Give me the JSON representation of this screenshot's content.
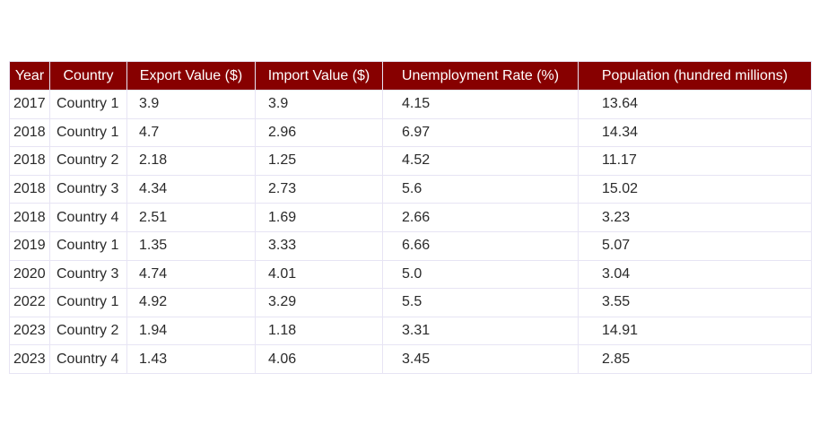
{
  "colors": {
    "header_bg": "#870000",
    "header_text": "#ffffff",
    "grid": "#e7e4f4",
    "cell_text": "#2a2a2a"
  },
  "chart_data": {
    "type": "table",
    "columns": [
      "Year",
      "Country",
      "Export Value ($)",
      "Import Value ($)",
      "Unemployment Rate (%)",
      "Population (hundred millions)"
    ],
    "rows": [
      [
        "2017",
        "Country 1",
        "3.9",
        "3.9",
        "4.15",
        "13.64"
      ],
      [
        "2018",
        "Country 1",
        "4.7",
        "2.96",
        "6.97",
        "14.34"
      ],
      [
        "2018",
        "Country 2",
        "2.18",
        "1.25",
        "4.52",
        "11.17"
      ],
      [
        "2018",
        "Country 3",
        "4.34",
        "2.73",
        "5.6",
        "15.02"
      ],
      [
        "2018",
        "Country 4",
        "2.51",
        "1.69",
        "2.66",
        "3.23"
      ],
      [
        "2019",
        "Country 1",
        "1.35",
        "3.33",
        "6.66",
        "5.07"
      ],
      [
        "2020",
        "Country 3",
        "4.74",
        "4.01",
        "5.0",
        "3.04"
      ],
      [
        "2022",
        "Country 1",
        "4.92",
        "3.29",
        "5.5",
        "3.55"
      ],
      [
        "2023",
        "Country 2",
        "1.94",
        "1.18",
        "3.31",
        "14.91"
      ],
      [
        "2023",
        "Country 4",
        "1.43",
        "4.06",
        "3.45",
        "2.85"
      ]
    ]
  }
}
